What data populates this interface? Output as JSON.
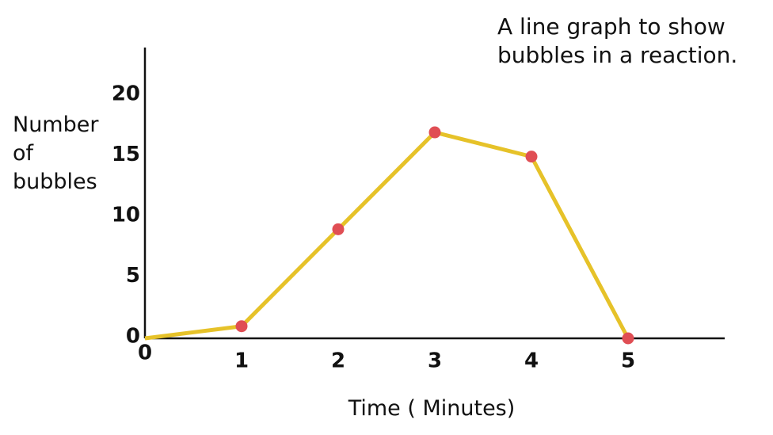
{
  "chart_data": {
    "type": "line",
    "title": "A line graph to show bubbles in a reaction.",
    "x_label": "Time ( Minutes)",
    "y_label": "Number of bubbles",
    "x": [
      0,
      1,
      2,
      3,
      4,
      5
    ],
    "series": [
      {
        "name": "Bubbles",
        "color": "#e6c229",
        "marker_color": "#e04e54",
        "values": [
          0,
          1,
          9,
          17,
          15,
          0
        ]
      }
    ],
    "xlim": [
      0,
      6
    ],
    "xticks": [
      0,
      1,
      2,
      3,
      4,
      5
    ],
    "ylim": [
      0,
      24
    ],
    "yticks": [
      0,
      5,
      10,
      15,
      20
    ],
    "grid": false
  }
}
